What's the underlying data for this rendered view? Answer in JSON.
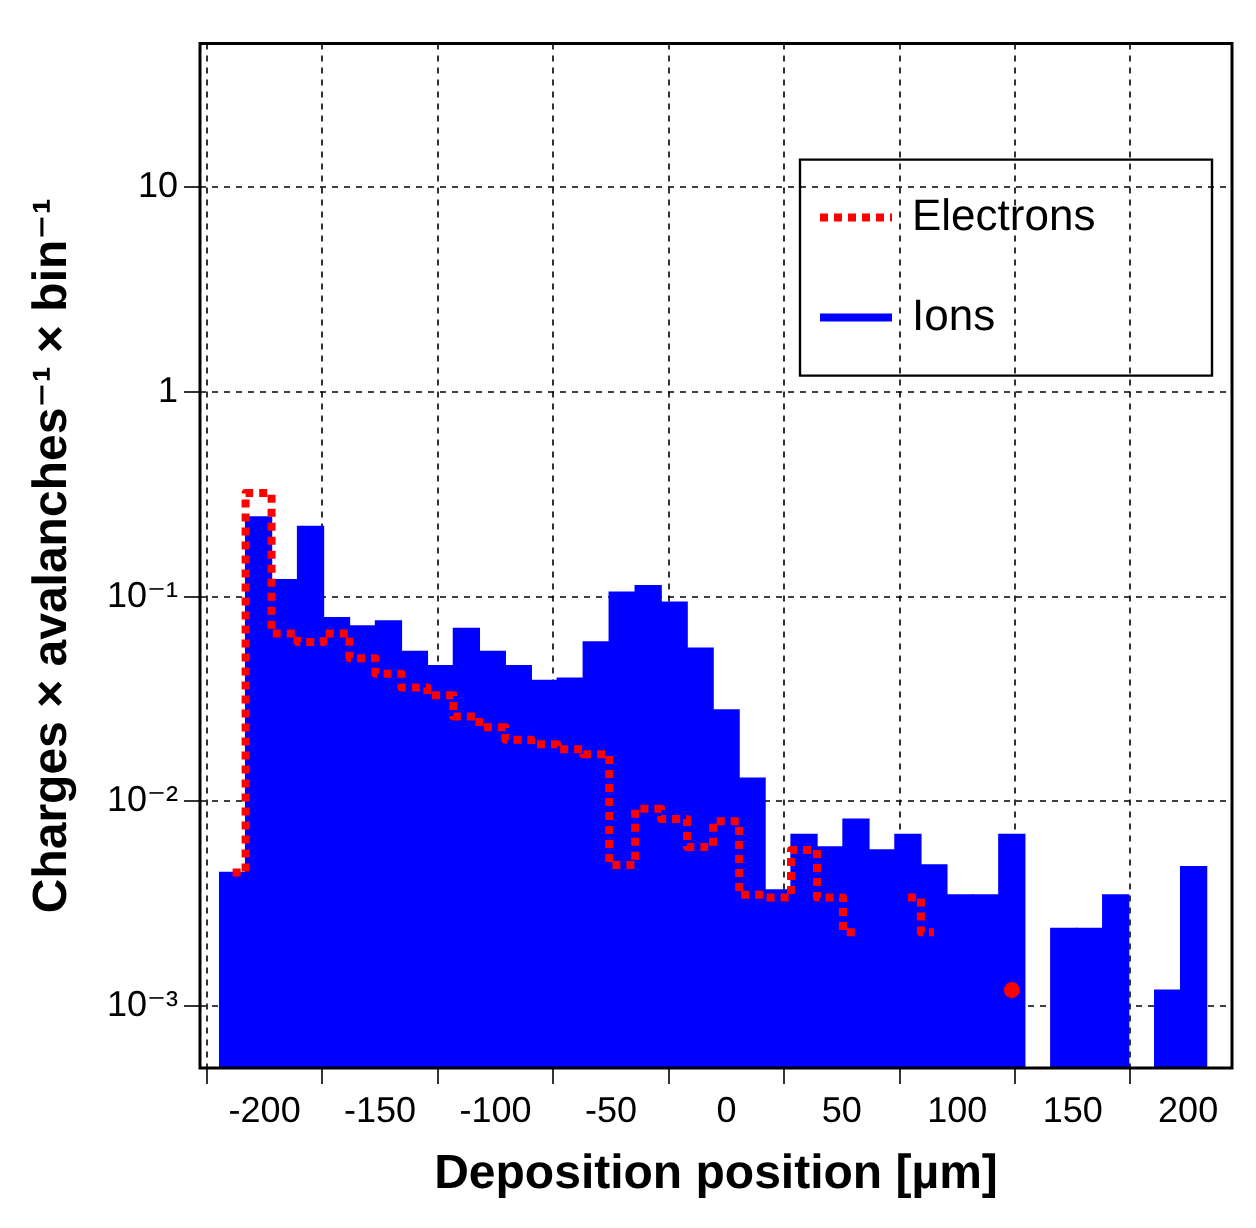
{
  "chart_data": {
    "type": "histogram",
    "xlabel": "Deposition position [µm]",
    "ylabel": "Charges × avalanches⁻¹ × bin⁻¹",
    "bins": [
      -219.5,
      -208.25,
      -197,
      -185.75,
      -174.5,
      -163.25,
      -152,
      -140.75,
      -129.5,
      -118.25,
      -107,
      -95.75,
      -84.5,
      -73.25,
      -62,
      -50.75,
      -39.5,
      -28.25,
      -17,
      -5.75,
      5.5,
      16.75,
      28,
      39.25,
      50.5,
      61.75,
      73,
      84.25,
      95.5,
      106.75,
      118,
      129.25,
      140.5,
      151.75,
      163,
      174.25,
      185.5,
      196.75,
      208
    ],
    "series": [
      {
        "name": "Electrons",
        "type": "step",
        "x": [
          -213.875,
          -202.625,
          -191.375,
          -180.125,
          -168.875,
          -157.625,
          -146.375,
          -135.125,
          -123.875,
          -112.625,
          -101.375,
          -90.125,
          -78.875,
          -67.625,
          -56.375,
          -45.125,
          -33.875,
          -22.625,
          -11.375,
          -0.125,
          11.125,
          22.375,
          33.625,
          44.875,
          56.125,
          67.375,
          78.625,
          89.875,
          101.125,
          112.375,
          123.625
        ],
        "color": "#ff0000",
        "line_style": "dotted",
        "values": [
          0.0045,
          0.32,
          0.066,
          0.06,
          0.066,
          0.05,
          0.042,
          0.036,
          0.033,
          0.026,
          0.023,
          0.02,
          0.019,
          0.018,
          0.017,
          0.0049,
          0.0092,
          0.0082,
          0.006,
          0.008,
          0.0035,
          0.0034,
          0.0058,
          0.0034,
          0.0023,
          null,
          0.0034,
          0.0023,
          null,
          null,
          0.0012
        ]
      },
      {
        "name": "Ions",
        "color": "#0000ff",
        "line_style": "solid",
        "values": [
          0.0045,
          0.245,
          0.121,
          0.22,
          0.079,
          0.072,
          0.076,
          0.054,
          0.046,
          0.07,
          0.054,
          0.046,
          0.039,
          0.04,
          0.06,
          0.105,
          0.113,
          0.094,
          0.056,
          0.028,
          0.013,
          0.0037,
          0.0069,
          0.006,
          0.0082,
          0.0058,
          0.0069,
          0.0049,
          0.0035,
          0.0035,
          0.0069,
          null,
          0.0024,
          0.0024,
          0.0035,
          null,
          0.0012,
          0.0048
        ]
      }
    ],
    "xlim": [
      -228,
      219
    ],
    "xticks": [
      -200,
      -150,
      -100,
      -50,
      0,
      50,
      100,
      150,
      200
    ],
    "ylim": [
      0.0005,
      50
    ],
    "yticks": [
      {
        "value": 0.001,
        "label": "10⁻³"
      },
      {
        "value": 0.01,
        "label": "10⁻²"
      },
      {
        "value": 0.1,
        "label": "10⁻¹"
      },
      1,
      10
    ],
    "log": "y",
    "grid": true,
    "legend": "top right"
  }
}
